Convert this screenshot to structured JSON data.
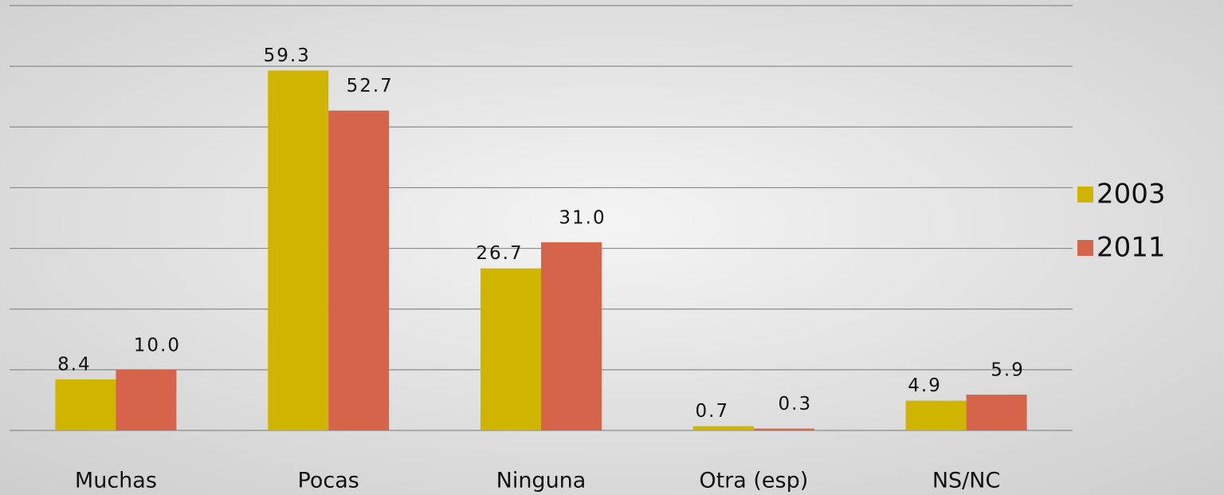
{
  "chart_data": {
    "type": "bar",
    "categories": [
      "Muchas",
      "Pocas",
      "Ninguna",
      "Otra (esp)",
      "NS/NC"
    ],
    "series": [
      {
        "name": "2003",
        "color": "#cfb400",
        "values": [
          8.4,
          59.3,
          26.7,
          0.7,
          4.9
        ],
        "value_labels": [
          "8.4",
          "59.3",
          "26.7",
          "0.7",
          "4.9"
        ]
      },
      {
        "name": "2011",
        "color": "#d5644a",
        "values": [
          10,
          52.7,
          31,
          0.3,
          5.9
        ],
        "value_labels": [
          "10.0",
          "52.7",
          "31.0",
          "0.3",
          "5.9"
        ]
      }
    ],
    "ylim": [
      0,
      70
    ],
    "yticks": [
      0,
      10,
      20,
      30,
      40,
      50,
      60,
      70
    ],
    "grid": true,
    "legend": "right"
  }
}
